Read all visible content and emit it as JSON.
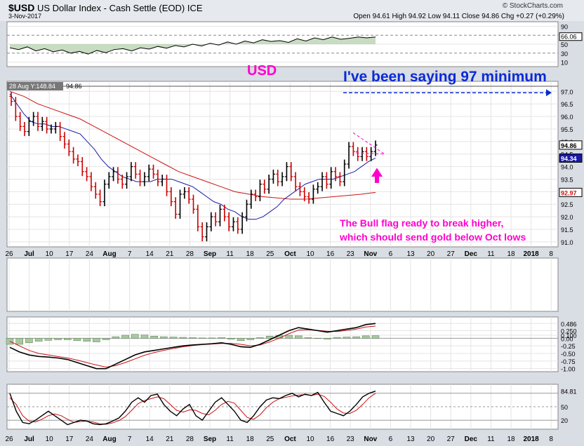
{
  "header": {
    "symbol": "$USD",
    "name": "US Dollar Index - Cash Settle (EOD)",
    "exchange": "ICE",
    "date": "3-Nov-2017",
    "brand": "© StockCharts.com",
    "ohlc": "Open 94.61  High 94.92  Low 94.11  Close 94.86  Chg +0.27 (+0.29%)"
  },
  "overlays": {
    "title_annotation": "USD",
    "target_annotation": "I've been saying 97 minimum",
    "flag_annotation_line1": "The Bull flag ready to break higher,",
    "flag_annotation_line2": "which should send gold below Oct lows",
    "tooltip": "28 Aug Y:148.84",
    "level_label": "94.86"
  },
  "colors": {
    "bg": "#d9dde4",
    "panel": "#ffffff",
    "price_up": "#000000",
    "price_down": "#cc0000",
    "ma_short": "#1a1aa6",
    "ma_long": "#cc1111",
    "annotation": "#ff00cc",
    "target": "#0a2ad6"
  },
  "chart_data": [
    {
      "type": "line",
      "panel": "RSI (top)",
      "ylim": [
        0,
        100
      ],
      "tick_labels": [
        "90",
        "70",
        "50",
        "30",
        "10"
      ],
      "last_value_label": "66.06",
      "values": [
        42,
        38,
        44,
        35,
        40,
        33,
        37,
        30,
        34,
        28,
        36,
        31,
        38,
        40,
        35,
        42,
        39,
        45,
        41,
        47,
        44,
        50,
        46,
        52,
        48,
        55,
        50,
        57,
        53,
        60,
        56,
        58,
        54,
        62,
        57,
        64,
        60,
        66,
        61,
        63,
        66,
        64,
        66
      ],
      "grid": true
    },
    {
      "type": "candlestick",
      "panel": "Price",
      "x_tick_labels": [
        "26",
        "Jul",
        "10",
        "17",
        "24",
        "Aug",
        "7",
        "14",
        "21",
        "28",
        "Sep",
        "11",
        "18",
        "25",
        "Oct",
        "10",
        "16",
        "23",
        "Nov",
        "6",
        "13",
        "20",
        "27",
        "Dec",
        "11",
        "18",
        "2018",
        "8"
      ],
      "y_tick_labels": [
        "97.0",
        "96.5",
        "96.0",
        "95.5",
        "95.0",
        "94.5",
        "94.0",
        "93.5",
        "93.0",
        "92.5",
        "92.0",
        "91.5",
        "91.0"
      ],
      "ylim": [
        90.8,
        97.4
      ],
      "last_close_label": "94.86",
      "ma_label_short": "94.34",
      "ma_label_long": "92.97",
      "close": [
        96.6,
        96.0,
        95.6,
        95.4,
        95.8,
        96.0,
        95.6,
        95.8,
        95.5,
        95.5,
        95.6,
        95.2,
        94.9,
        94.6,
        94.3,
        94.2,
        93.8,
        93.6,
        93.2,
        92.9,
        92.6,
        93.3,
        93.6,
        93.8,
        93.5,
        93.3,
        93.6,
        94.0,
        93.7,
        93.4,
        93.6,
        93.9,
        93.7,
        93.4,
        93.5,
        93.0,
        92.6,
        92.1,
        92.9,
        93.0,
        92.7,
        92.3,
        91.6,
        91.2,
        91.6,
        92.0,
        91.8,
        92.3,
        92.0,
        91.6,
        91.8,
        91.5,
        92.0,
        92.5,
        92.9,
        92.8,
        93.3,
        93.1,
        93.5,
        93.7,
        93.4,
        93.6,
        94.0,
        93.6,
        93.2,
        93.0,
        92.8,
        92.7,
        93.1,
        93.2,
        93.6,
        93.3,
        93.8,
        93.6,
        93.4,
        94.1,
        94.8,
        94.6,
        94.4,
        94.6,
        94.4,
        94.6,
        94.86
      ],
      "ma_short": [
        96.9,
        96.5,
        96.1,
        95.8,
        95.7,
        95.7,
        95.6,
        95.6,
        95.5,
        95.4,
        95.3,
        95.0,
        94.7,
        94.3,
        94.0,
        93.8,
        93.6,
        93.5,
        93.4,
        93.4,
        93.4,
        93.5,
        93.5,
        93.5,
        93.4,
        93.3,
        93.2,
        93.0,
        92.8,
        92.6,
        92.5,
        92.3,
        92.2,
        92.0,
        91.9,
        91.9,
        92.0,
        92.2,
        92.4,
        92.7,
        92.9,
        93.1,
        93.3,
        93.4,
        93.5,
        93.5,
        93.5,
        93.6,
        93.7,
        93.8,
        94.0,
        94.2,
        94.34
      ],
      "ma_long": [
        97.0,
        96.8,
        96.5,
        96.3,
        96.1,
        95.9,
        95.6,
        95.3,
        95.0,
        94.7,
        94.4,
        94.1,
        93.8,
        93.6,
        93.4,
        93.2,
        93.0,
        92.9,
        92.8,
        92.75,
        92.7,
        92.7,
        92.75,
        92.8,
        92.85,
        92.9,
        92.97
      ],
      "annotations": [
        "97 target line",
        "bull flag triangle",
        "pink up arrow"
      ]
    },
    {
      "type": "line",
      "panel": "MACD",
      "tick_labels": [
        "0.486",
        "0.250",
        "0.100",
        "0.00",
        "-0.25",
        "-0.50",
        "-0.75",
        "-1.00"
      ],
      "ylim": [
        -1.1,
        0.7
      ],
      "macd": [
        -0.3,
        -0.45,
        -0.55,
        -0.6,
        -0.62,
        -0.65,
        -0.7,
        -0.8,
        -0.9,
        -1.0,
        -1.0,
        -0.85,
        -0.7,
        -0.55,
        -0.45,
        -0.4,
        -0.35,
        -0.3,
        -0.25,
        -0.22,
        -0.2,
        -0.18,
        -0.15,
        -0.2,
        -0.28,
        -0.3,
        -0.2,
        -0.05,
        0.1,
        0.25,
        0.35,
        0.3,
        0.25,
        0.2,
        0.25,
        0.3,
        0.35,
        0.45,
        0.486
      ],
      "signal": [
        -0.1,
        -0.25,
        -0.4,
        -0.5,
        -0.55,
        -0.6,
        -0.65,
        -0.72,
        -0.8,
        -0.88,
        -0.95,
        -0.9,
        -0.8,
        -0.68,
        -0.56,
        -0.47,
        -0.4,
        -0.34,
        -0.28,
        -0.24,
        -0.21,
        -0.19,
        -0.17,
        -0.17,
        -0.2,
        -0.25,
        -0.22,
        -0.12,
        0.0,
        0.15,
        0.27,
        0.28,
        0.26,
        0.23,
        0.22,
        0.26,
        0.3,
        0.37,
        0.4
      ],
      "last_value_labels": [
        "0.486",
        "0.100"
      ]
    },
    {
      "type": "line",
      "panel": "Stochastic",
      "tick_labels": [
        "84.81",
        "50",
        "20"
      ],
      "ylim": [
        0,
        100
      ],
      "k": [
        80,
        40,
        15,
        12,
        20,
        30,
        40,
        30,
        20,
        10,
        15,
        20,
        18,
        12,
        10,
        12,
        18,
        25,
        40,
        60,
        70,
        60,
        75,
        78,
        55,
        40,
        30,
        45,
        55,
        30,
        20,
        40,
        60,
        70,
        55,
        40,
        20,
        15,
        30,
        50,
        65,
        70,
        68,
        75,
        80,
        72,
        78,
        75,
        82,
        60,
        40,
        35,
        30,
        40,
        55,
        72,
        80,
        84.81
      ],
      "d": [
        70,
        55,
        30,
        18,
        16,
        22,
        30,
        34,
        30,
        22,
        15,
        17,
        18,
        16,
        12,
        11,
        14,
        19,
        28,
        42,
        57,
        64,
        68,
        72,
        68,
        55,
        42,
        38,
        43,
        42,
        35,
        32,
        42,
        55,
        62,
        58,
        42,
        26,
        22,
        32,
        48,
        60,
        68,
        71,
        74,
        76,
        77,
        75,
        78,
        73,
        60,
        45,
        36,
        35,
        42,
        55,
        70,
        80
      ],
      "reference_lines": [
        80,
        50,
        20
      ]
    }
  ]
}
